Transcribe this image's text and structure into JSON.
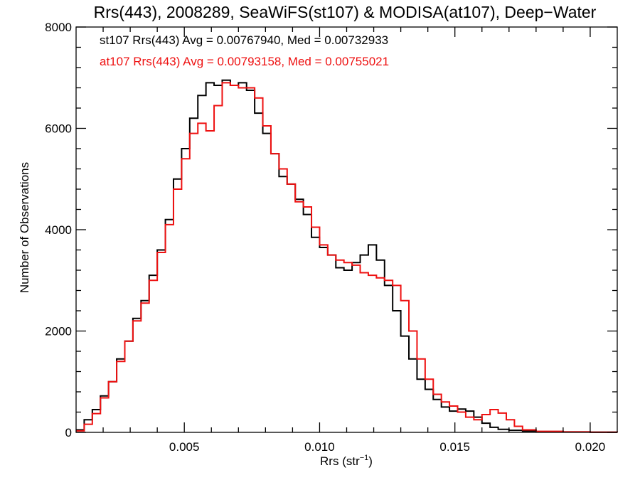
{
  "chart_data": {
    "type": "line",
    "title": "Rrs(443), 2008289, SeaWiFS(st107) & MODISA(at107), Deep−Water",
    "xlabel": "Rrs (str",
    "xlabel_sup": "−1",
    "xlabel_end": ")",
    "ylabel": "Number of Observations",
    "xlim": [
      0.001,
      0.021
    ],
    "ylim": [
      0,
      8000
    ],
    "x_ticks": [
      {
        "value": 0.005,
        "label": "0.005"
      },
      {
        "value": 0.01,
        "label": "0.010"
      },
      {
        "value": 0.015,
        "label": "0.015"
      },
      {
        "value": 0.02,
        "label": "0.020"
      }
    ],
    "y_ticks": [
      {
        "value": 0,
        "label": "0"
      },
      {
        "value": 2000,
        "label": "2000"
      },
      {
        "value": 4000,
        "label": "4000"
      },
      {
        "value": 6000,
        "label": "6000"
      },
      {
        "value": 8000,
        "label": "8000"
      }
    ],
    "annotations": [
      {
        "text": "st107 Rrs(443) Avg = 0.00767940, Med = 0.00732933",
        "color": "#000000"
      },
      {
        "text": "at107 Rrs(443) Avg = 0.00793158, Med = 0.00755021",
        "color": "#ee1111"
      }
    ],
    "series": [
      {
        "id": "st107",
        "color": "#000000",
        "points": [
          [
            0.001,
            50
          ],
          [
            0.0013,
            250
          ],
          [
            0.0016,
            450
          ],
          [
            0.0019,
            720
          ],
          [
            0.0022,
            1000
          ],
          [
            0.0025,
            1450
          ],
          [
            0.0028,
            1800
          ],
          [
            0.0031,
            2250
          ],
          [
            0.0034,
            2600
          ],
          [
            0.0037,
            3100
          ],
          [
            0.004,
            3600
          ],
          [
            0.0043,
            4200
          ],
          [
            0.0046,
            5000
          ],
          [
            0.0049,
            5600
          ],
          [
            0.0052,
            6200
          ],
          [
            0.0055,
            6650
          ],
          [
            0.0058,
            6900
          ],
          [
            0.0061,
            6850
          ],
          [
            0.0064,
            6950
          ],
          [
            0.0067,
            6850
          ],
          [
            0.007,
            6900
          ],
          [
            0.0073,
            6750
          ],
          [
            0.0076,
            6300
          ],
          [
            0.0079,
            5900
          ],
          [
            0.0082,
            5500
          ],
          [
            0.0085,
            5050
          ],
          [
            0.0088,
            4900
          ],
          [
            0.0091,
            4600
          ],
          [
            0.0094,
            4300
          ],
          [
            0.0097,
            3850
          ],
          [
            0.01,
            3650
          ],
          [
            0.0103,
            3500
          ],
          [
            0.0106,
            3250
          ],
          [
            0.0109,
            3200
          ],
          [
            0.0112,
            3350
          ],
          [
            0.0115,
            3500
          ],
          [
            0.0118,
            3700
          ],
          [
            0.0121,
            3400
          ],
          [
            0.0124,
            2900
          ],
          [
            0.0127,
            2400
          ],
          [
            0.013,
            1900
          ],
          [
            0.0133,
            1450
          ],
          [
            0.0136,
            1050
          ],
          [
            0.0139,
            850
          ],
          [
            0.0142,
            650
          ],
          [
            0.0145,
            500
          ],
          [
            0.0148,
            420
          ],
          [
            0.0151,
            460
          ],
          [
            0.0154,
            420
          ],
          [
            0.0157,
            300
          ],
          [
            0.016,
            180
          ],
          [
            0.0163,
            100
          ],
          [
            0.0166,
            60
          ],
          [
            0.017,
            40
          ],
          [
            0.0175,
            25
          ],
          [
            0.018,
            15
          ],
          [
            0.019,
            8
          ],
          [
            0.02,
            4
          ],
          [
            0.021,
            2
          ]
        ]
      },
      {
        "id": "at107",
        "color": "#ee1111",
        "points": [
          [
            0.001,
            30
          ],
          [
            0.0013,
            160
          ],
          [
            0.0016,
            370
          ],
          [
            0.0019,
            680
          ],
          [
            0.0022,
            1000
          ],
          [
            0.0025,
            1400
          ],
          [
            0.0028,
            1800
          ],
          [
            0.0031,
            2200
          ],
          [
            0.0034,
            2550
          ],
          [
            0.0037,
            3000
          ],
          [
            0.004,
            3550
          ],
          [
            0.0043,
            4100
          ],
          [
            0.0046,
            4800
          ],
          [
            0.0049,
            5400
          ],
          [
            0.0052,
            5900
          ],
          [
            0.0055,
            6100
          ],
          [
            0.0058,
            5950
          ],
          [
            0.0061,
            6450
          ],
          [
            0.0064,
            6900
          ],
          [
            0.0067,
            6850
          ],
          [
            0.007,
            6800
          ],
          [
            0.0073,
            6800
          ],
          [
            0.0076,
            6600
          ],
          [
            0.0079,
            6050
          ],
          [
            0.0082,
            5500
          ],
          [
            0.0085,
            5200
          ],
          [
            0.0088,
            4900
          ],
          [
            0.0091,
            4550
          ],
          [
            0.0094,
            4450
          ],
          [
            0.0097,
            4050
          ],
          [
            0.01,
            3700
          ],
          [
            0.0103,
            3500
          ],
          [
            0.0106,
            3400
          ],
          [
            0.0109,
            3350
          ],
          [
            0.0112,
            3300
          ],
          [
            0.0115,
            3150
          ],
          [
            0.0118,
            3100
          ],
          [
            0.0121,
            3050
          ],
          [
            0.0124,
            3000
          ],
          [
            0.0127,
            2900
          ],
          [
            0.013,
            2600
          ],
          [
            0.0133,
            2000
          ],
          [
            0.0136,
            1450
          ],
          [
            0.0139,
            1050
          ],
          [
            0.0142,
            750
          ],
          [
            0.0145,
            600
          ],
          [
            0.0148,
            520
          ],
          [
            0.0151,
            400
          ],
          [
            0.0154,
            300
          ],
          [
            0.0157,
            250
          ],
          [
            0.016,
            350
          ],
          [
            0.0163,
            450
          ],
          [
            0.0166,
            380
          ],
          [
            0.0169,
            250
          ],
          [
            0.0172,
            120
          ],
          [
            0.0175,
            50
          ],
          [
            0.018,
            20
          ],
          [
            0.019,
            8
          ],
          [
            0.02,
            4
          ],
          [
            0.021,
            2
          ]
        ]
      }
    ]
  }
}
